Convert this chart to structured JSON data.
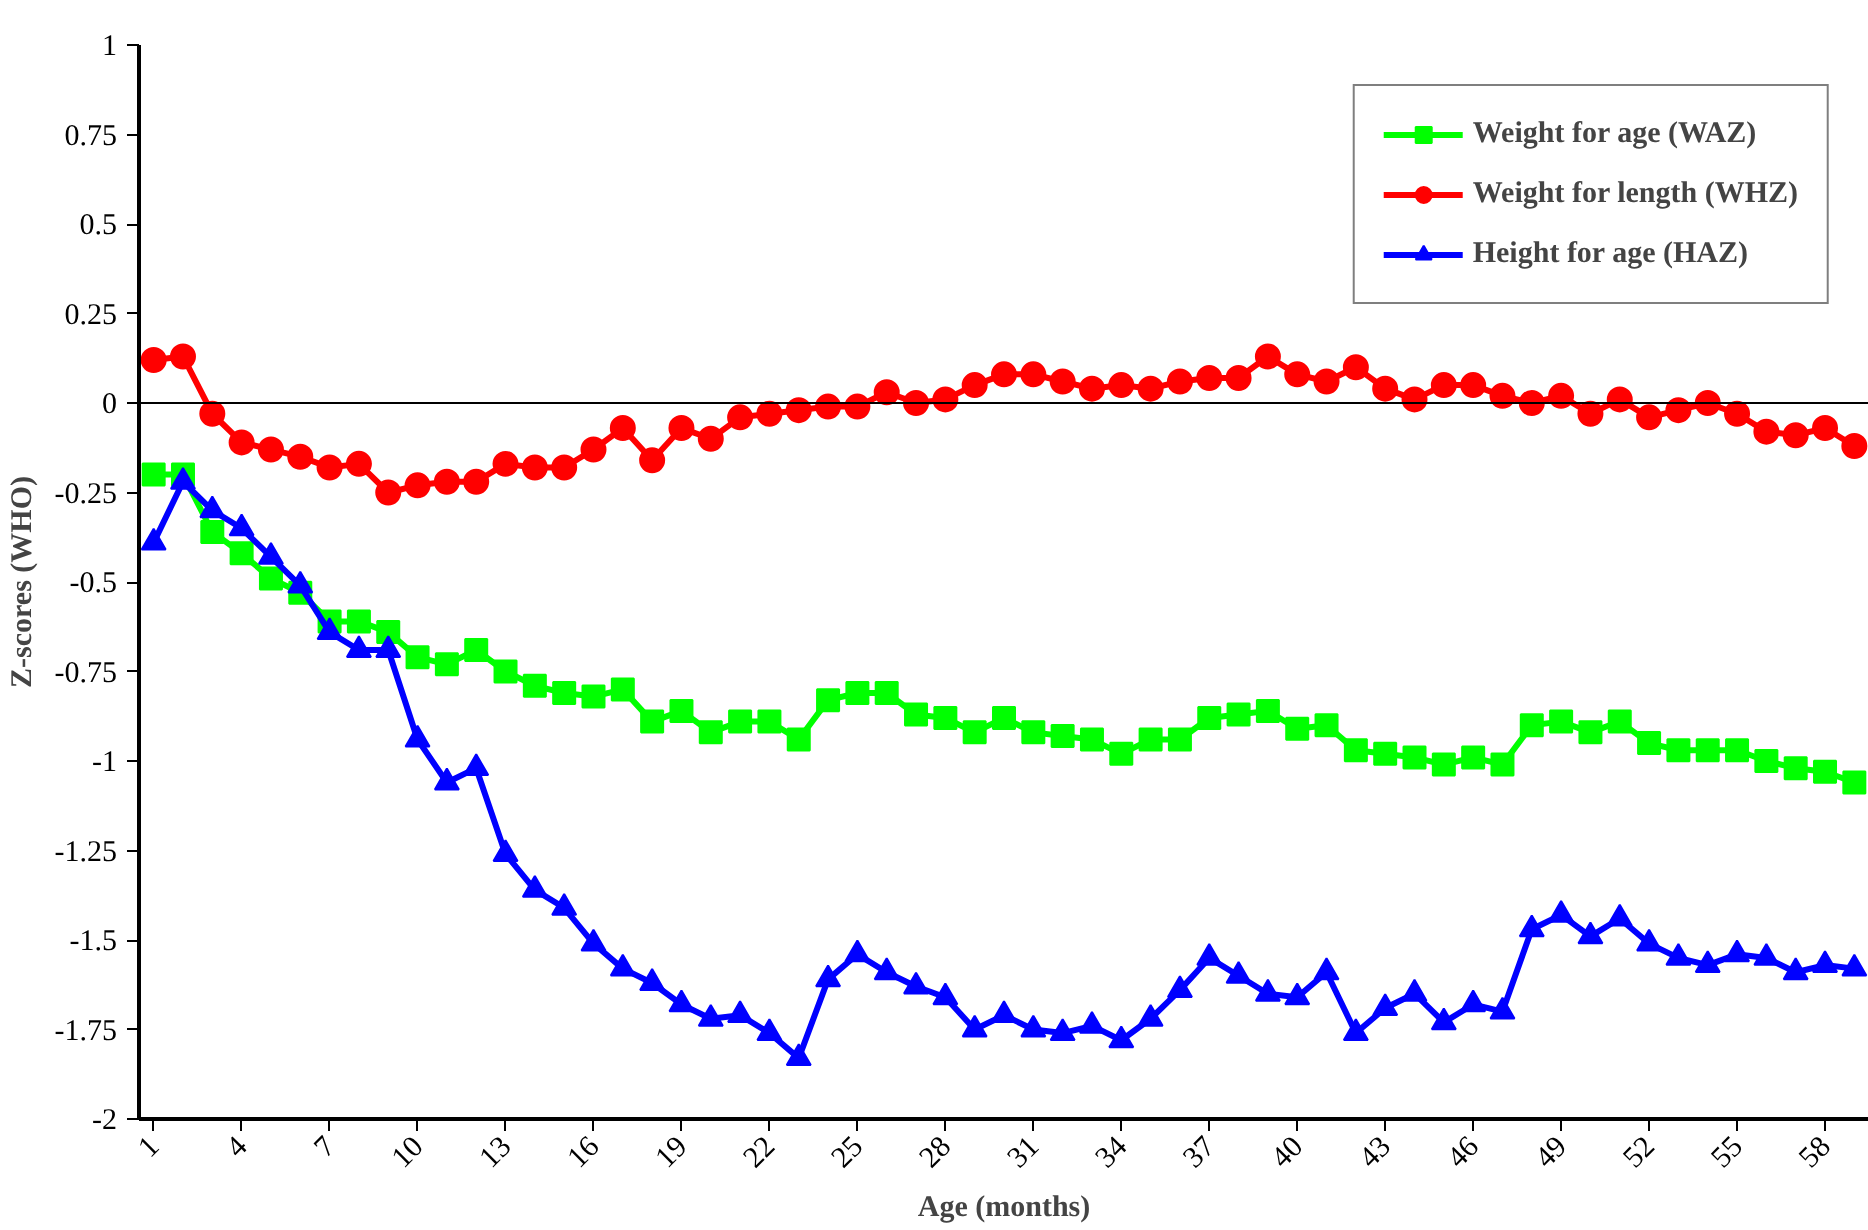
{
  "chart_data": {
    "type": "line",
    "xlabel": "Age (months)",
    "ylabel": "Z-scores (WHO)",
    "x": [
      1,
      2,
      3,
      4,
      5,
      6,
      7,
      8,
      9,
      10,
      11,
      12,
      13,
      14,
      15,
      16,
      17,
      18,
      19,
      20,
      21,
      22,
      23,
      24,
      25,
      26,
      27,
      28,
      29,
      30,
      31,
      32,
      33,
      34,
      35,
      36,
      37,
      38,
      39,
      40,
      41,
      42,
      43,
      44,
      45,
      46,
      47,
      48,
      49,
      50,
      51,
      52,
      53,
      54,
      55,
      56,
      57,
      58,
      59
    ],
    "xlim": [
      0.5,
      59.5
    ],
    "xticks": [
      1,
      4,
      7,
      10,
      13,
      16,
      19,
      22,
      25,
      28,
      31,
      34,
      37,
      40,
      43,
      46,
      49,
      52,
      55,
      58
    ],
    "ylim": [
      -2,
      1
    ],
    "yticks": [
      -2,
      -1.75,
      -1.5,
      -1.25,
      -1,
      -0.75,
      -0.5,
      -0.25,
      0,
      0.25,
      0.5,
      0.75,
      1
    ],
    "grid": false,
    "legend": "top right",
    "line_style": "solid",
    "ref_lines": [
      {
        "axis": "y",
        "value": 0,
        "color": "#000000"
      }
    ],
    "series": [
      {
        "name": "Weight for age (WAZ)",
        "color": "#00ff00",
        "marker": "square",
        "values": [
          -0.2,
          -0.2,
          -0.36,
          -0.42,
          -0.49,
          -0.53,
          -0.61,
          -0.61,
          -0.64,
          -0.71,
          -0.73,
          -0.69,
          -0.75,
          -0.79,
          -0.81,
          -0.82,
          -0.8,
          -0.89,
          -0.86,
          -0.92,
          -0.89,
          -0.89,
          -0.94,
          -0.83,
          -0.81,
          -0.81,
          -0.87,
          -0.88,
          -0.92,
          -0.88,
          -0.92,
          -0.93,
          -0.94,
          -0.98,
          -0.94,
          -0.94,
          -0.88,
          -0.87,
          -0.86,
          -0.91,
          -0.9,
          -0.97,
          -0.98,
          -0.99,
          -1.01,
          -0.99,
          -1.01,
          -0.9,
          -0.89,
          -0.92,
          -0.89,
          -0.95,
          -0.97,
          -0.97,
          -0.97,
          -1.0,
          -1.02,
          -1.03,
          -1.06
        ]
      },
      {
        "name": "Weight for length (WHZ)",
        "color": "#ff0000",
        "marker": "circle",
        "values": [
          0.12,
          0.13,
          -0.03,
          -0.11,
          -0.13,
          -0.15,
          -0.18,
          -0.17,
          -0.25,
          -0.23,
          -0.22,
          -0.22,
          -0.17,
          -0.18,
          -0.18,
          -0.13,
          -0.07,
          -0.16,
          -0.07,
          -0.1,
          -0.04,
          -0.03,
          -0.02,
          -0.01,
          -0.01,
          0.03,
          0.0,
          0.01,
          0.05,
          0.08,
          0.08,
          0.06,
          0.04,
          0.05,
          0.04,
          0.06,
          0.07,
          0.07,
          0.13,
          0.08,
          0.06,
          0.1,
          0.04,
          0.01,
          0.05,
          0.05,
          0.02,
          0.0,
          0.02,
          -0.03,
          0.01,
          -0.04,
          -0.02,
          0.0,
          -0.03,
          -0.08,
          -0.09,
          -0.07,
          -0.12
        ]
      },
      {
        "name": "Height for age (HAZ)",
        "color": "#0000ff",
        "marker": "triangle",
        "values": [
          -0.39,
          -0.22,
          -0.3,
          -0.35,
          -0.43,
          -0.51,
          -0.64,
          -0.69,
          -0.69,
          -0.94,
          -1.06,
          -1.02,
          -1.26,
          -1.36,
          -1.41,
          -1.51,
          -1.58,
          -1.62,
          -1.68,
          -1.72,
          -1.71,
          -1.76,
          -1.83,
          -1.61,
          -1.54,
          -1.59,
          -1.63,
          -1.66,
          -1.75,
          -1.71,
          -1.75,
          -1.76,
          -1.74,
          -1.78,
          -1.72,
          -1.64,
          -1.55,
          -1.6,
          -1.65,
          -1.66,
          -1.59,
          -1.76,
          -1.69,
          -1.65,
          -1.73,
          -1.68,
          -1.7,
          -1.47,
          -1.43,
          -1.49,
          -1.44,
          -1.51,
          -1.55,
          -1.57,
          -1.54,
          -1.55,
          -1.59,
          -1.57,
          -1.58
        ]
      }
    ]
  }
}
